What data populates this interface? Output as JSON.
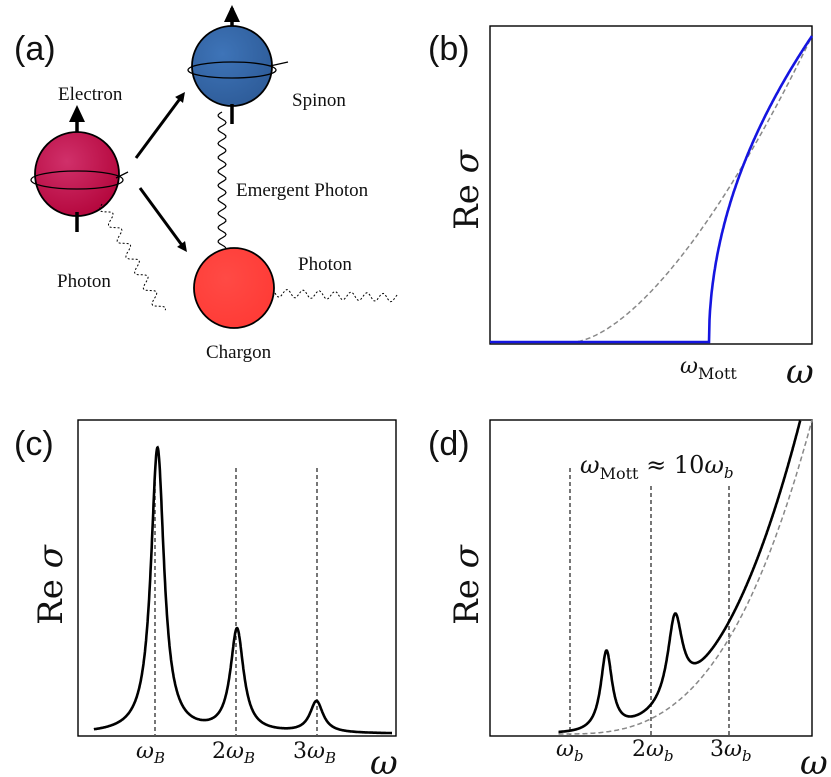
{
  "panel_a": {
    "label": "(a)",
    "electron_label": "Electron",
    "spinon_label": "Spinon",
    "emergent_photon_label": "Emergent Photon",
    "photon_label_left": "Photon",
    "photon_label_right": "Photon",
    "chargon_label": "Chargon",
    "colors": {
      "electron": "#b4063c",
      "spinon": "#2e5c99",
      "chargon": "#ff3a35"
    }
  },
  "panel_b": {
    "label": "(b)",
    "ylabel_main": "Re ",
    "ylabel_sym": "σ",
    "xlabel": "ω",
    "tick_main": "ω",
    "tick_sub": "Mott",
    "colors": {
      "gap_curve": "#1515e0",
      "reference": "#888888"
    }
  },
  "panel_c": {
    "label": "(c)",
    "ylabel_main": "Re ",
    "ylabel_sym": "σ",
    "xlabel": "ω",
    "ticks": [
      {
        "prefix": "",
        "main": "ω",
        "sub": "B"
      },
      {
        "prefix": "2",
        "main": "ω",
        "sub": "B"
      },
      {
        "prefix": "3",
        "main": "ω",
        "sub": "B"
      }
    ]
  },
  "panel_d": {
    "label": "(d)",
    "ylabel_main": "Re ",
    "ylabel_sym": "σ",
    "xlabel": "ω",
    "annotation": {
      "main": "ω",
      "sub": "Mott",
      "relation": " ≈ 10",
      "main2": "ω",
      "sub2": "b"
    },
    "ticks": [
      {
        "prefix": "",
        "main": "ω",
        "sub": "b"
      },
      {
        "prefix": "2",
        "main": "ω",
        "sub": "b"
      },
      {
        "prefix": "3",
        "main": "ω",
        "sub": "b"
      }
    ]
  },
  "chart_data": [
    {
      "panel": "b",
      "type": "line",
      "title": "",
      "xlabel": "ω",
      "ylabel": "Re σ",
      "xlim": [
        0,
        1
      ],
      "ylim": [
        0,
        1
      ],
      "series": [
        {
          "name": "Mott-gapped response",
          "style": "solid blue",
          "gap_x": 0.68,
          "sqrt_amplitude": 1.0
        },
        {
          "name": "ungapped reference",
          "style": "dashed gray",
          "onset_x": 0.26,
          "power": 1.6
        }
      ],
      "ticks": [
        "ωMott"
      ]
    },
    {
      "panel": "c",
      "type": "line",
      "title": "",
      "xlabel": "ω",
      "ylabel": "Re σ",
      "xlim": [
        0,
        4
      ],
      "ylim": [
        0,
        1.1
      ],
      "peaks": [
        {
          "position": 1,
          "height": 1.0,
          "width": 0.1
        },
        {
          "position": 2,
          "height": 0.36,
          "width": 0.1
        },
        {
          "position": 3,
          "height": 0.11,
          "width": 0.1
        }
      ],
      "ticks": [
        "ωB",
        "2ωB",
        "3ωB"
      ]
    },
    {
      "panel": "d",
      "type": "line",
      "title": "",
      "xlabel": "ω",
      "ylabel": "Re σ",
      "xlim": [
        0,
        4.7
      ],
      "ylim": [
        0,
        1.3
      ],
      "annotation": "ωMott ≈ 10ωb",
      "peaks": [
        {
          "position": 1.7,
          "height": 0.33,
          "width": 0.1
        },
        {
          "position": 2.7,
          "height": 0.35,
          "width": 0.13
        }
      ],
      "reference_power": 3,
      "ticks": [
        "ωb",
        "2ωb",
        "3ωb"
      ]
    }
  ]
}
